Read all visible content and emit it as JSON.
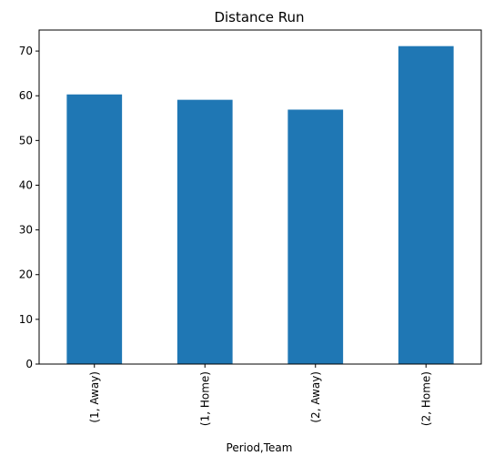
{
  "chart_data": {
    "type": "bar",
    "title": "Distance Run",
    "xlabel": "Period,Team",
    "ylabel": "",
    "categories": [
      "(1, Away)",
      "(1, Home)",
      "(2, Away)",
      "(2, Home)"
    ],
    "values": [
      60.3,
      59.1,
      56.9,
      71.1
    ],
    "ylim": [
      0,
      74.7
    ],
    "yticks": [
      0,
      10,
      20,
      30,
      40,
      50,
      60,
      70
    ],
    "grid": false,
    "legend": "none",
    "bar_color": "#1f77b4",
    "x_tick_rotation_deg": 90
  }
}
